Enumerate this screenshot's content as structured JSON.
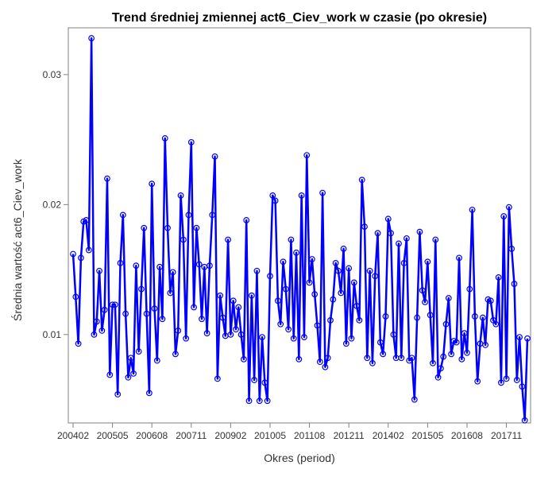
{
  "chart_data": {
    "type": "line",
    "title": "Trend średniej zmiennej act6_Ciev_work w czasie (po okresie)",
    "xlabel": "Okres (period)",
    "ylabel": "Średnia wartość act6_Ciev_work",
    "ylim": [
      0.0032,
      0.0336
    ],
    "yticks": [
      0.01,
      0.02,
      0.03
    ],
    "ytick_labels": [
      "0.01",
      "0.02",
      "0.03"
    ],
    "xtick_labels": [
      "200402",
      "200505",
      "200608",
      "200711",
      "200902",
      "201005",
      "201108",
      "201211",
      "201402",
      "201505",
      "201608",
      "201711"
    ],
    "xtick_index": [
      0,
      15,
      30,
      45,
      60,
      75,
      90,
      105,
      120,
      135,
      150,
      165
    ],
    "grid": false,
    "legend": "none",
    "line_color": "#0000ff",
    "marker": "open-circle",
    "series": [
      {
        "values": [
          0.0162,
          0.0129,
          0.0093,
          0.0159,
          0.0187,
          0.0188,
          0.0165,
          0.0328,
          0.01,
          0.011,
          0.0149,
          0.0103,
          0.0119,
          0.022,
          0.0069,
          0.0123,
          0.0123,
          0.0054,
          0.0155,
          0.0192,
          0.0116,
          0.0067,
          0.0082,
          0.007,
          0.0153,
          0.0087,
          0.0135,
          0.0182,
          0.0116,
          0.0055,
          0.0216,
          0.012,
          0.008,
          0.0152,
          0.0112,
          0.0251,
          0.0182,
          0.0132,
          0.0148,
          0.0085,
          0.0103,
          0.0207,
          0.0173,
          0.0097,
          0.0192,
          0.0248,
          0.0121,
          0.0182,
          0.0154,
          0.0112,
          0.0152,
          0.0101,
          0.0153,
          0.0192,
          0.0237,
          0.0066,
          0.013,
          0.0113,
          0.0099,
          0.0173,
          0.01,
          0.0126,
          0.0104,
          0.0121,
          0.01,
          0.0081,
          0.0188,
          0.0049,
          0.013,
          0.0065,
          0.0149,
          0.0049,
          0.0098,
          0.0063,
          0.0049,
          0.0145,
          0.0207,
          0.0203,
          0.0126,
          0.0108,
          0.0156,
          0.0135,
          0.0104,
          0.0173,
          0.0097,
          0.0163,
          0.0081,
          0.0207,
          0.0098,
          0.0238,
          0.014,
          0.0158,
          0.0131,
          0.0107,
          0.0079,
          0.0209,
          0.0075,
          0.0082,
          0.0111,
          0.0127,
          0.0155,
          0.0149,
          0.0132,
          0.0166,
          0.0093,
          0.0151,
          0.0097,
          0.014,
          0.0122,
          0.0111,
          0.0219,
          0.0183,
          0.0082,
          0.0149,
          0.0078,
          0.0145,
          0.0178,
          0.0094,
          0.0085,
          0.0114,
          0.0189,
          0.0178,
          0.01,
          0.0082,
          0.017,
          0.0082,
          0.0155,
          0.0174,
          0.008,
          0.0082,
          0.005,
          0.0113,
          0.0179,
          0.0134,
          0.0125,
          0.0156,
          0.0115,
          0.0078,
          0.0173,
          0.0067,
          0.0074,
          0.0083,
          0.0108,
          0.0128,
          0.0085,
          0.0095,
          0.0094,
          0.0159,
          0.0081,
          0.0101,
          0.0086,
          0.0135,
          0.0196,
          0.0114,
          0.0064,
          0.0093,
          0.0113,
          0.0092,
          0.0127,
          0.0126,
          0.0111,
          0.0108,
          0.0144,
          0.0063,
          0.0191,
          0.0066,
          0.0198,
          0.0166,
          0.0139,
          0.0065,
          0.0098,
          0.006,
          0.0034,
          0.0097
        ]
      }
    ]
  }
}
